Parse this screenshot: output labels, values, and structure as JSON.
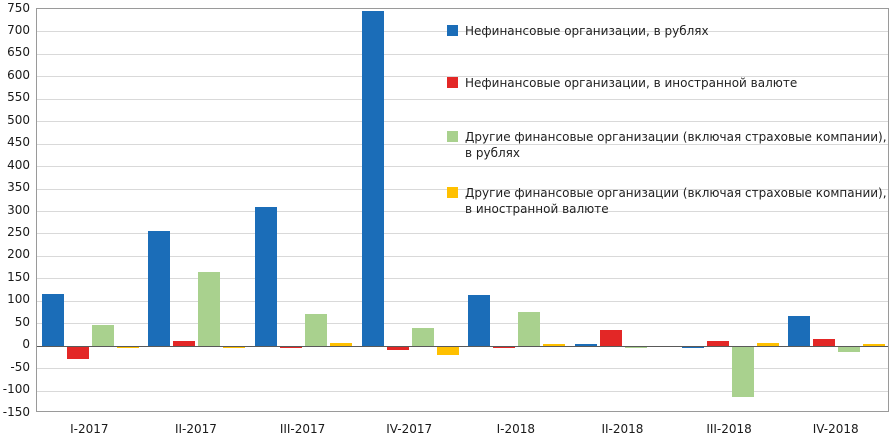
{
  "chart_data": {
    "type": "bar",
    "title": "",
    "xlabel": "",
    "ylabel": "",
    "ylim": [
      -150,
      750
    ],
    "ytick_step": 50,
    "grid": true,
    "legend_position": "top-right-inside",
    "categories": [
      "I-2017",
      "II-2017",
      "III-2017",
      "IV-2017",
      "I-2018",
      "II-2018",
      "III-2018",
      "IV-2018"
    ],
    "series": [
      {
        "name": "Нефинансовые организации, в рублях",
        "color": "#1b6db8",
        "values": [
          115,
          255,
          308,
          745,
          112,
          3,
          -5,
          65
        ]
      },
      {
        "name": "Нефинансовые организации, в иностранной валюте",
        "color": "#e32726",
        "values": [
          -30,
          10,
          -6,
          -10,
          -5,
          35,
          10,
          15
        ]
      },
      {
        "name": "Другие финансовые организации (включая страховые компании),\nв рублях",
        "color": "#a9d18e",
        "values": [
          45,
          165,
          70,
          40,
          75,
          -5,
          -115,
          -15
        ]
      },
      {
        "name": "Другие финансовые организации (включая страховые компании),\nв иностранной валюте",
        "color": "#ffc000",
        "values": [
          -5,
          -5,
          5,
          -20,
          3,
          -4,
          5,
          3
        ]
      }
    ]
  }
}
